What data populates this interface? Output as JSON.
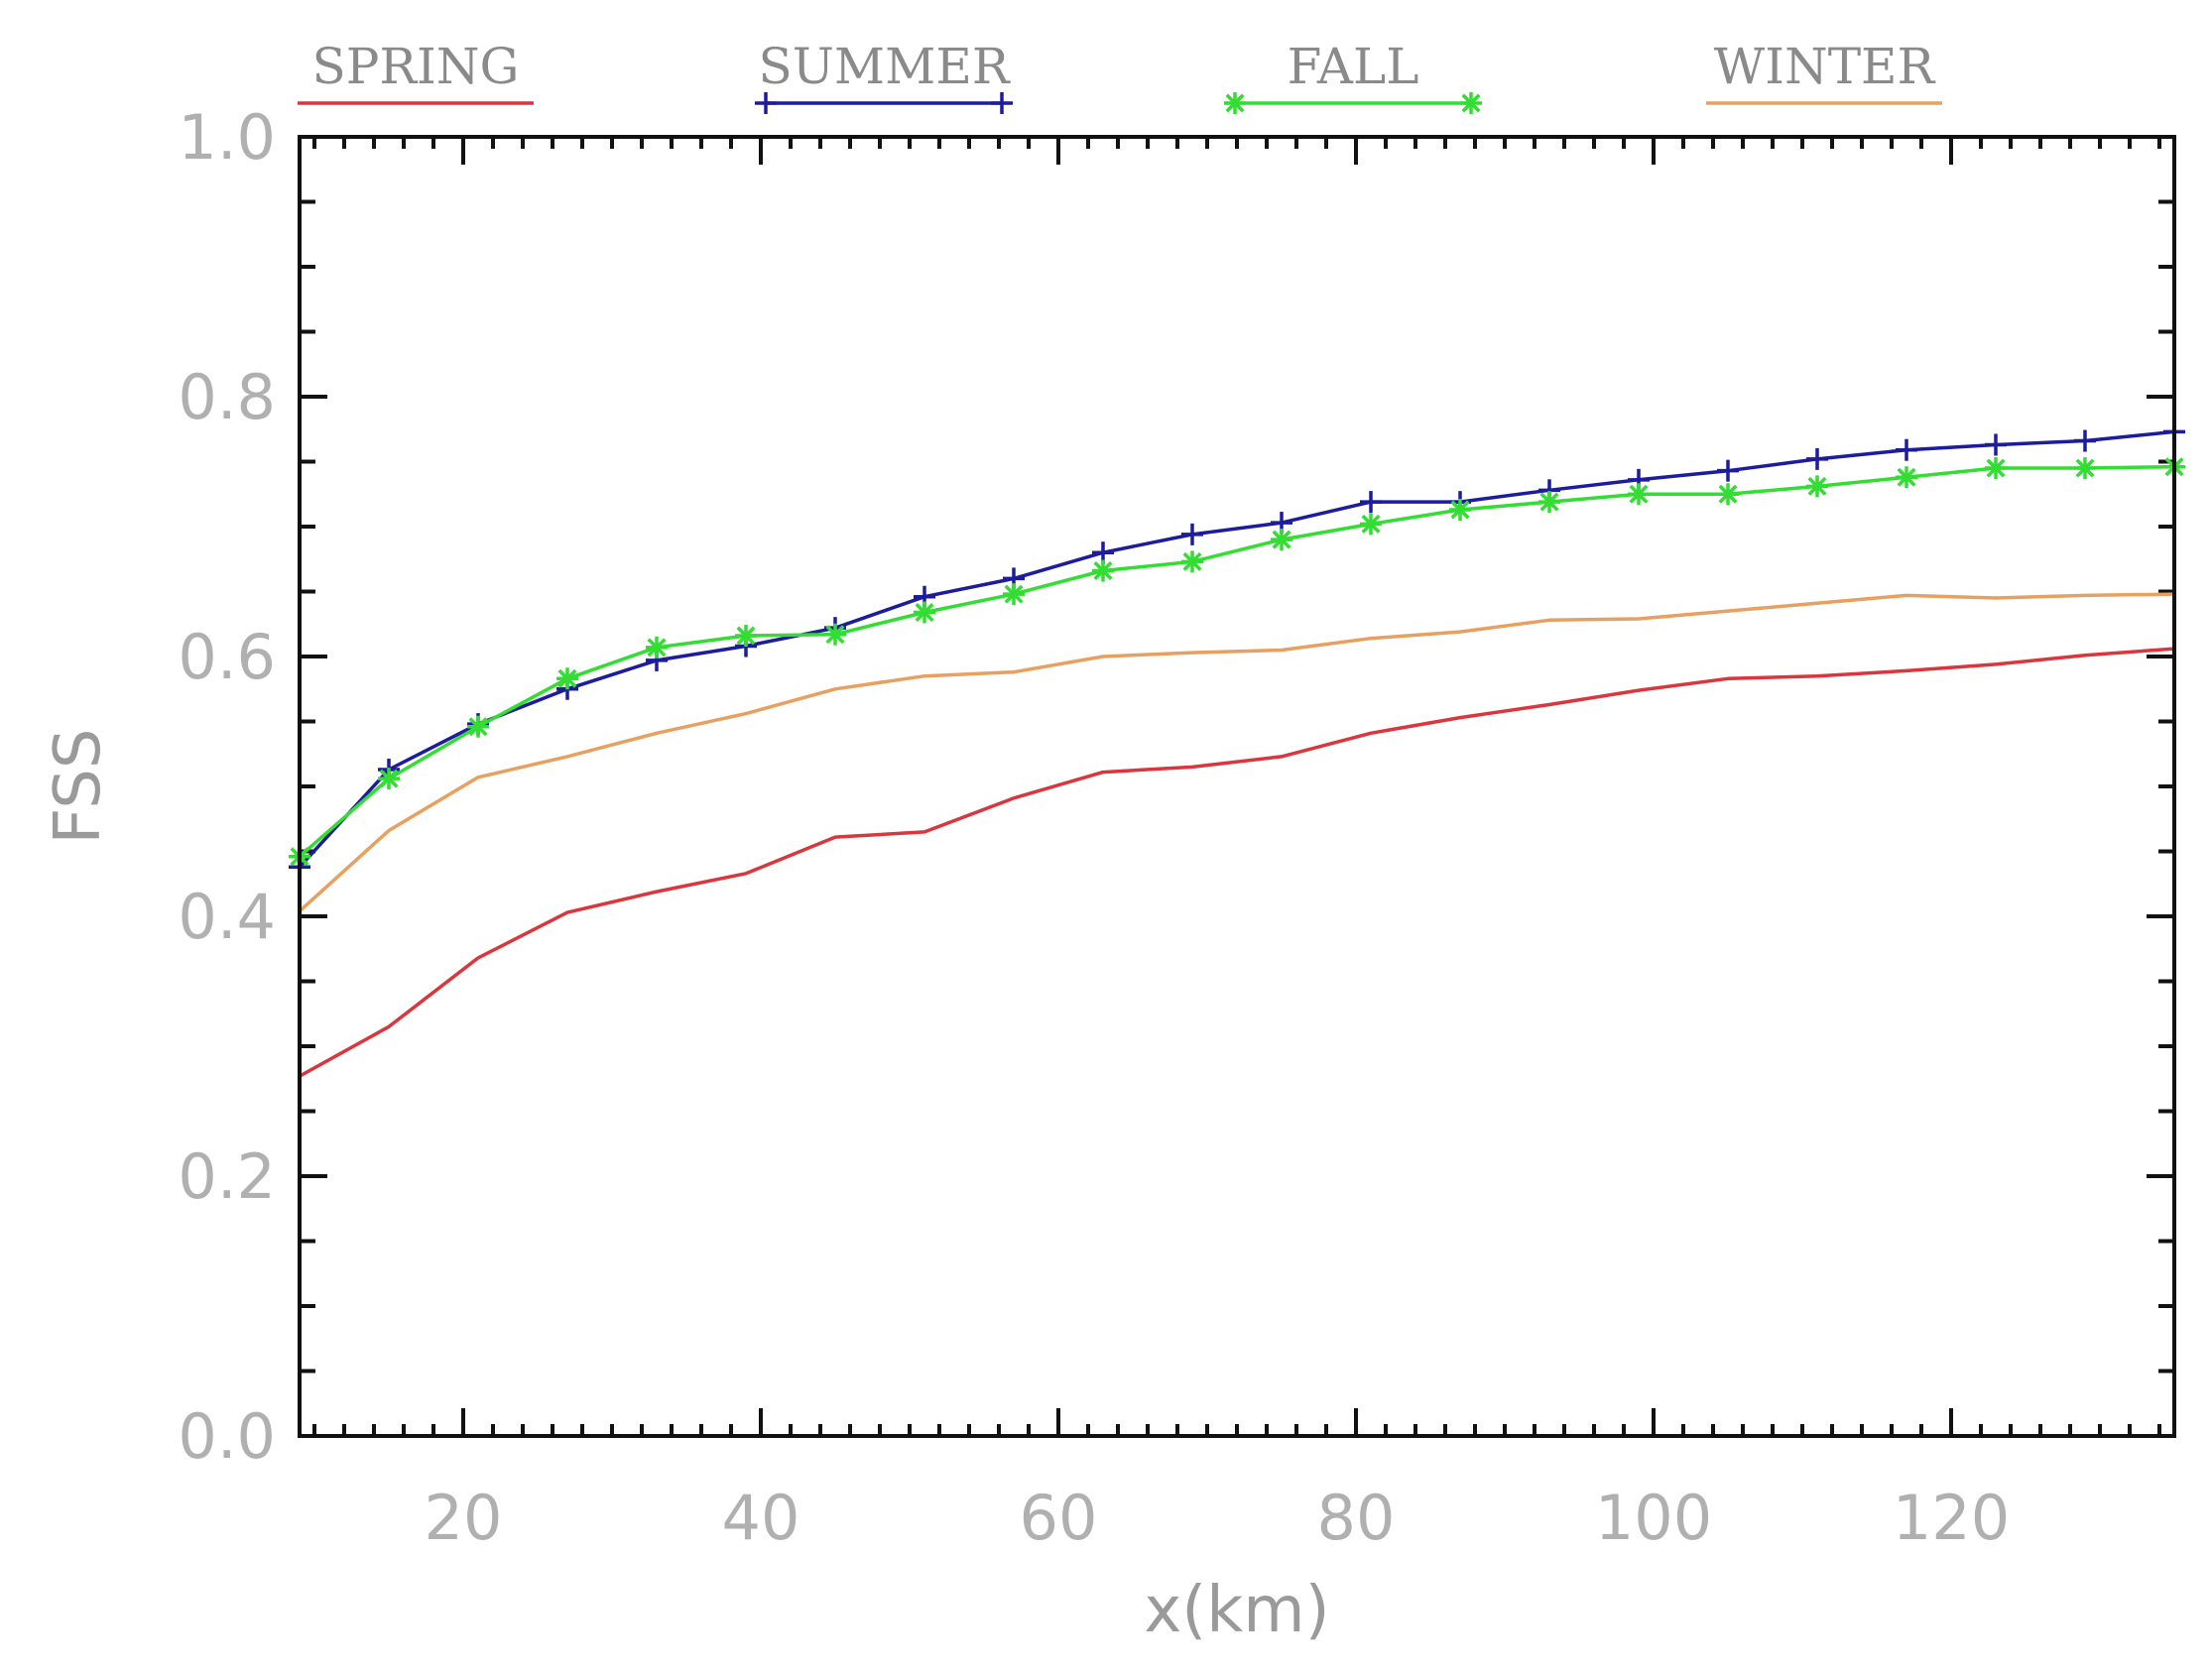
{
  "chart_data": {
    "type": "line",
    "title": "",
    "xlabel": "x(km)",
    "ylabel": "FSS",
    "xlim": [
      9,
      135
    ],
    "ylim": [
      0.0,
      1.0
    ],
    "x_ticks": [
      20,
      40,
      60,
      80,
      100,
      120
    ],
    "x_tick_labels": [
      "20",
      "40",
      "60",
      "80",
      "100",
      "120"
    ],
    "y_ticks": [
      0.0,
      0.2,
      0.4,
      0.6,
      0.8,
      1.0
    ],
    "y_tick_labels": [
      "0.0",
      "0.2",
      "0.4",
      "0.6",
      "0.8",
      "1.0"
    ],
    "grid": false,
    "legend_position": "top",
    "x": [
      9,
      15,
      21,
      27,
      33,
      39,
      45,
      51,
      57,
      63,
      69,
      75,
      81,
      87,
      93,
      99,
      105,
      111,
      117,
      123,
      129,
      135
    ],
    "series": [
      {
        "name": "SPRING",
        "color": "#d9363e",
        "marker": "none",
        "values": [
          0.277,
          0.315,
          0.368,
          0.403,
          0.419,
          0.433,
          0.461,
          0.465,
          0.491,
          0.511,
          0.515,
          0.523,
          0.541,
          0.553,
          0.563,
          0.574,
          0.583,
          0.585,
          0.589,
          0.594,
          0.601,
          0.606
        ]
      },
      {
        "name": "SUMMER",
        "color": "#1c1c9c",
        "marker": "plus",
        "values": [
          0.438,
          0.513,
          0.548,
          0.575,
          0.597,
          0.608,
          0.622,
          0.646,
          0.66,
          0.68,
          0.694,
          0.703,
          0.719,
          0.719,
          0.728,
          0.736,
          0.743,
          0.752,
          0.759,
          0.763,
          0.766,
          0.773
        ]
      },
      {
        "name": "FALL",
        "color": "#33dd33",
        "marker": "asterisk",
        "values": [
          0.446,
          0.506,
          0.546,
          0.583,
          0.607,
          0.616,
          0.617,
          0.634,
          0.648,
          0.666,
          0.673,
          0.69,
          0.702,
          0.713,
          0.719,
          0.725,
          0.725,
          0.731,
          0.738,
          0.745,
          0.745,
          0.746
        ]
      },
      {
        "name": "WINTER",
        "color": "#e8a060",
        "marker": "none",
        "values": [
          0.404,
          0.466,
          0.507,
          0.523,
          0.541,
          0.556,
          0.575,
          0.585,
          0.588,
          0.6,
          0.603,
          0.605,
          0.614,
          0.619,
          0.628,
          0.629,
          0.635,
          0.641,
          0.647,
          0.645,
          0.647,
          0.648
        ]
      }
    ]
  }
}
